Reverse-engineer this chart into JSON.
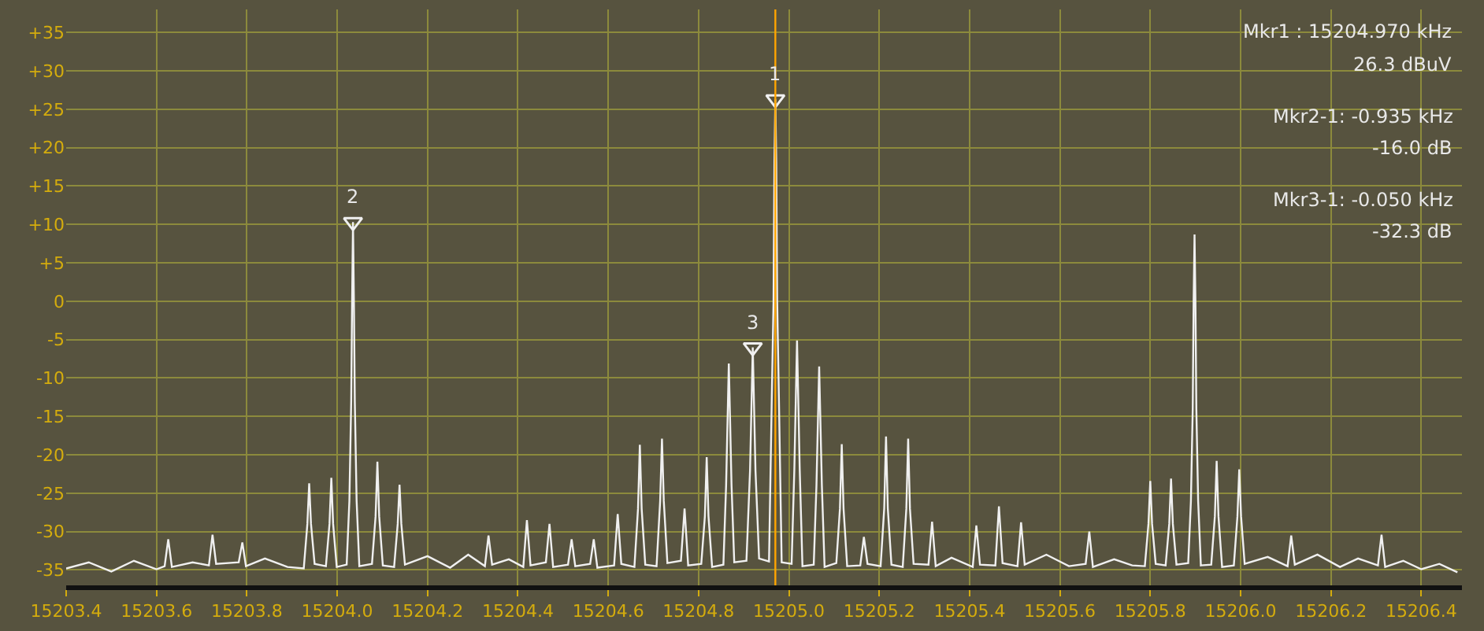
{
  "chart_data": {
    "type": "line",
    "xlim": [
      15203.4,
      15206.49
    ],
    "ylim": [
      -37,
      38
    ],
    "xticks": [
      15203.4,
      15203.6,
      15203.8,
      {
        "value": 15204,
        "label": "15204.0"
      },
      15204.2,
      15204.4,
      15204.6,
      15204.8,
      {
        "value": 15205,
        "label": "15205.0"
      },
      15205.2,
      15205.4,
      15205.6,
      15205.8,
      {
        "value": 15206,
        "label": "15206.0"
      },
      15206.2,
      15206.4
    ],
    "yticks": [
      {
        "value": 35,
        "label": "+35"
      },
      {
        "value": 30,
        "label": "+30"
      },
      {
        "value": 25,
        "label": "+25"
      },
      {
        "value": 20,
        "label": "+20"
      },
      {
        "value": 15,
        "label": "+15"
      },
      {
        "value": 10,
        "label": "+10"
      },
      {
        "value": 5,
        "label": "+5"
      },
      0,
      -5,
      -10,
      -15,
      -20,
      -25,
      -30,
      -35
    ],
    "grid": true,
    "ref_lines": [
      {
        "axis": "x",
        "value": 15204.97,
        "label": null,
        "color": "#ffa500"
      }
    ],
    "annotations": [
      {
        "text": "1",
        "x": 15204.97,
        "y": 26.3
      },
      {
        "text": "2",
        "x": 15204.035,
        "y": 10.3
      },
      {
        "text": "3",
        "x": 15204.92,
        "y": -6.0
      },
      "Mkr1 : 15204.970 kHz",
      "26.3 dBuV",
      "Mkr2-1: -0.935 kHz",
      "-16.0 dB",
      "Mkr3-1: -0.050 kHz",
      "-32.3 dB"
    ],
    "series": [
      {
        "color": "#f0f0f0",
        "marker": "none",
        "x": [
          15203.4,
          15203.45,
          15203.5,
          15203.55,
          15203.6,
          15203.618,
          15203.626,
          15203.634,
          15203.68,
          15203.716,
          15203.724,
          15203.732,
          15203.782,
          15203.79,
          15203.798,
          15203.84,
          15203.89,
          15203.926,
          15203.934,
          15203.938,
          15203.942,
          15203.95,
          15203.975,
          15203.983,
          15203.987,
          15203.991,
          15203.999,
          15204.021,
          15204.027,
          15204.031,
          15204.033,
          15204.035,
          15204.037,
          15204.039,
          15204.043,
          15204.049,
          15204.077,
          15204.085,
          15204.089,
          15204.093,
          15204.101,
          15204.126,
          15204.134,
          15204.138,
          15204.142,
          15204.15,
          15204.2,
          15204.25,
          15204.29,
          15204.327,
          15204.335,
          15204.343,
          15204.38,
          15204.412,
          15204.42,
          15204.428,
          15204.462,
          15204.47,
          15204.478,
          15204.511,
          15204.519,
          15204.527,
          15204.56,
          15204.568,
          15204.576,
          15204.613,
          15204.621,
          15204.629,
          15204.658,
          15204.666,
          15204.67,
          15204.674,
          15204.682,
          15204.707,
          15204.715,
          15204.719,
          15204.723,
          15204.731,
          15204.761,
          15204.769,
          15204.777,
          15204.806,
          15204.814,
          15204.818,
          15204.822,
          15204.83,
          15204.855,
          15204.861,
          15204.867,
          15204.873,
          15204.879,
          15204.906,
          15204.914,
          15204.92,
          15204.926,
          15204.934,
          15204.956,
          15204.962,
          15204.966,
          15204.968,
          15204.97,
          15204.972,
          15204.974,
          15204.978,
          15204.984,
          15205.006,
          15205.012,
          15205.018,
          15205.024,
          15205.03,
          15205.055,
          15205.061,
          15205.067,
          15205.073,
          15205.079,
          15205.105,
          15205.113,
          15205.117,
          15205.121,
          15205.129,
          15205.158,
          15205.166,
          15205.174,
          15205.203,
          15205.211,
          15205.215,
          15205.219,
          15205.227,
          15205.252,
          15205.26,
          15205.264,
          15205.268,
          15205.276,
          15205.309,
          15205.317,
          15205.325,
          15205.36,
          15205.407,
          15205.415,
          15205.423,
          15205.457,
          15205.465,
          15205.473,
          15205.506,
          15205.514,
          15205.522,
          15205.57,
          15205.62,
          15205.657,
          15205.665,
          15205.673,
          15205.72,
          15205.76,
          15205.788,
          15205.796,
          15205.8,
          15205.804,
          15205.812,
          15205.834,
          15205.842,
          15205.846,
          15205.85,
          15205.858,
          15205.884,
          15205.89,
          15205.894,
          15205.896,
          15205.898,
          15205.9,
          15205.902,
          15205.906,
          15205.912,
          15205.935,
          15205.943,
          15205.947,
          15205.951,
          15205.959,
          15205.985,
          15205.993,
          15205.997,
          15206.001,
          15206.009,
          15206.06,
          15206.104,
          15206.112,
          15206.12,
          15206.17,
          15206.22,
          15206.26,
          15206.304,
          15206.312,
          15206.32,
          15206.36,
          15206.4,
          15206.44,
          15206.48
        ],
        "values": [
          -34.8,
          -34.0,
          -35.2,
          -33.8,
          -34.9,
          -34.5,
          -31,
          -34.6,
          -34.0,
          -34.4,
          -30.4,
          -34.2,
          -34.0,
          -31.4,
          -34.5,
          -33.5,
          -34.6,
          -34.8,
          -29,
          -23.7,
          -29,
          -34.2,
          -34.5,
          -29,
          -23,
          -29,
          -34.6,
          -34.3,
          -26,
          -13,
          0,
          10.3,
          0,
          -13,
          -26,
          -34.5,
          -34.2,
          -28,
          -20.9,
          -28,
          -34.4,
          -34.6,
          -29,
          -23.9,
          -29,
          -34.3,
          -33.2,
          -34.7,
          -33.0,
          -34.5,
          -30.5,
          -34.3,
          -33.6,
          -34.6,
          -28.5,
          -34.4,
          -34.0,
          -29,
          -34.6,
          -34.3,
          -31,
          -34.5,
          -34.2,
          -31,
          -34.7,
          -34.4,
          -27.7,
          -34.2,
          -34.6,
          -27,
          -18.7,
          -27,
          -34.3,
          -34.5,
          -26,
          -17.9,
          -26,
          -34.1,
          -33.8,
          -27,
          -34.4,
          -34.2,
          -28,
          -20.3,
          -28,
          -34.6,
          -34.3,
          -24,
          -8.1,
          -24,
          -34.0,
          -33.8,
          -22,
          -6.0,
          -22,
          -33.5,
          -33.9,
          -13,
          0,
          18,
          26.3,
          18,
          0,
          -13,
          -34.0,
          -34.2,
          -22,
          -5.1,
          -22,
          -34.5,
          -34.3,
          -24,
          -8.5,
          -24,
          -34.6,
          -34.1,
          -27,
          -18.6,
          -27,
          -34.5,
          -34.4,
          -30.7,
          -34.2,
          -34.5,
          -27,
          -17.6,
          -27,
          -34.3,
          -34.6,
          -27,
          -17.9,
          -27,
          -34.2,
          -34.3,
          -28.7,
          -34.5,
          -33.4,
          -34.6,
          -29.2,
          -34.3,
          -34.4,
          -26.7,
          -34.1,
          -34.5,
          -28.8,
          -34.3,
          -33.0,
          -34.5,
          -34.2,
          -30,
          -34.6,
          -33.6,
          -34.4,
          -34.5,
          -29,
          -23.4,
          -29,
          -34.2,
          -34.4,
          -29,
          -23.1,
          -29,
          -34.3,
          -34.1,
          -26,
          -14,
          0,
          8.7,
          0,
          -14,
          -26,
          -34.4,
          -34.3,
          -28,
          -20.8,
          -28,
          -34.6,
          -34.4,
          -28,
          -21.9,
          -28,
          -34.2,
          -33.3,
          -34.5,
          -30.5,
          -34.3,
          -33.0,
          -34.6,
          -33.5,
          -34.4,
          -30.4,
          -34.6,
          -33.8,
          -34.9,
          -34.2,
          -35.3
        ]
      },
      {
        "type": "scatter",
        "color": "#f0f0f0",
        "marker": "triangle",
        "x": [
          15204.97,
          15204.035,
          15204.92
        ],
        "values": [
          26.3,
          10.3,
          -6.0
        ]
      }
    ]
  }
}
